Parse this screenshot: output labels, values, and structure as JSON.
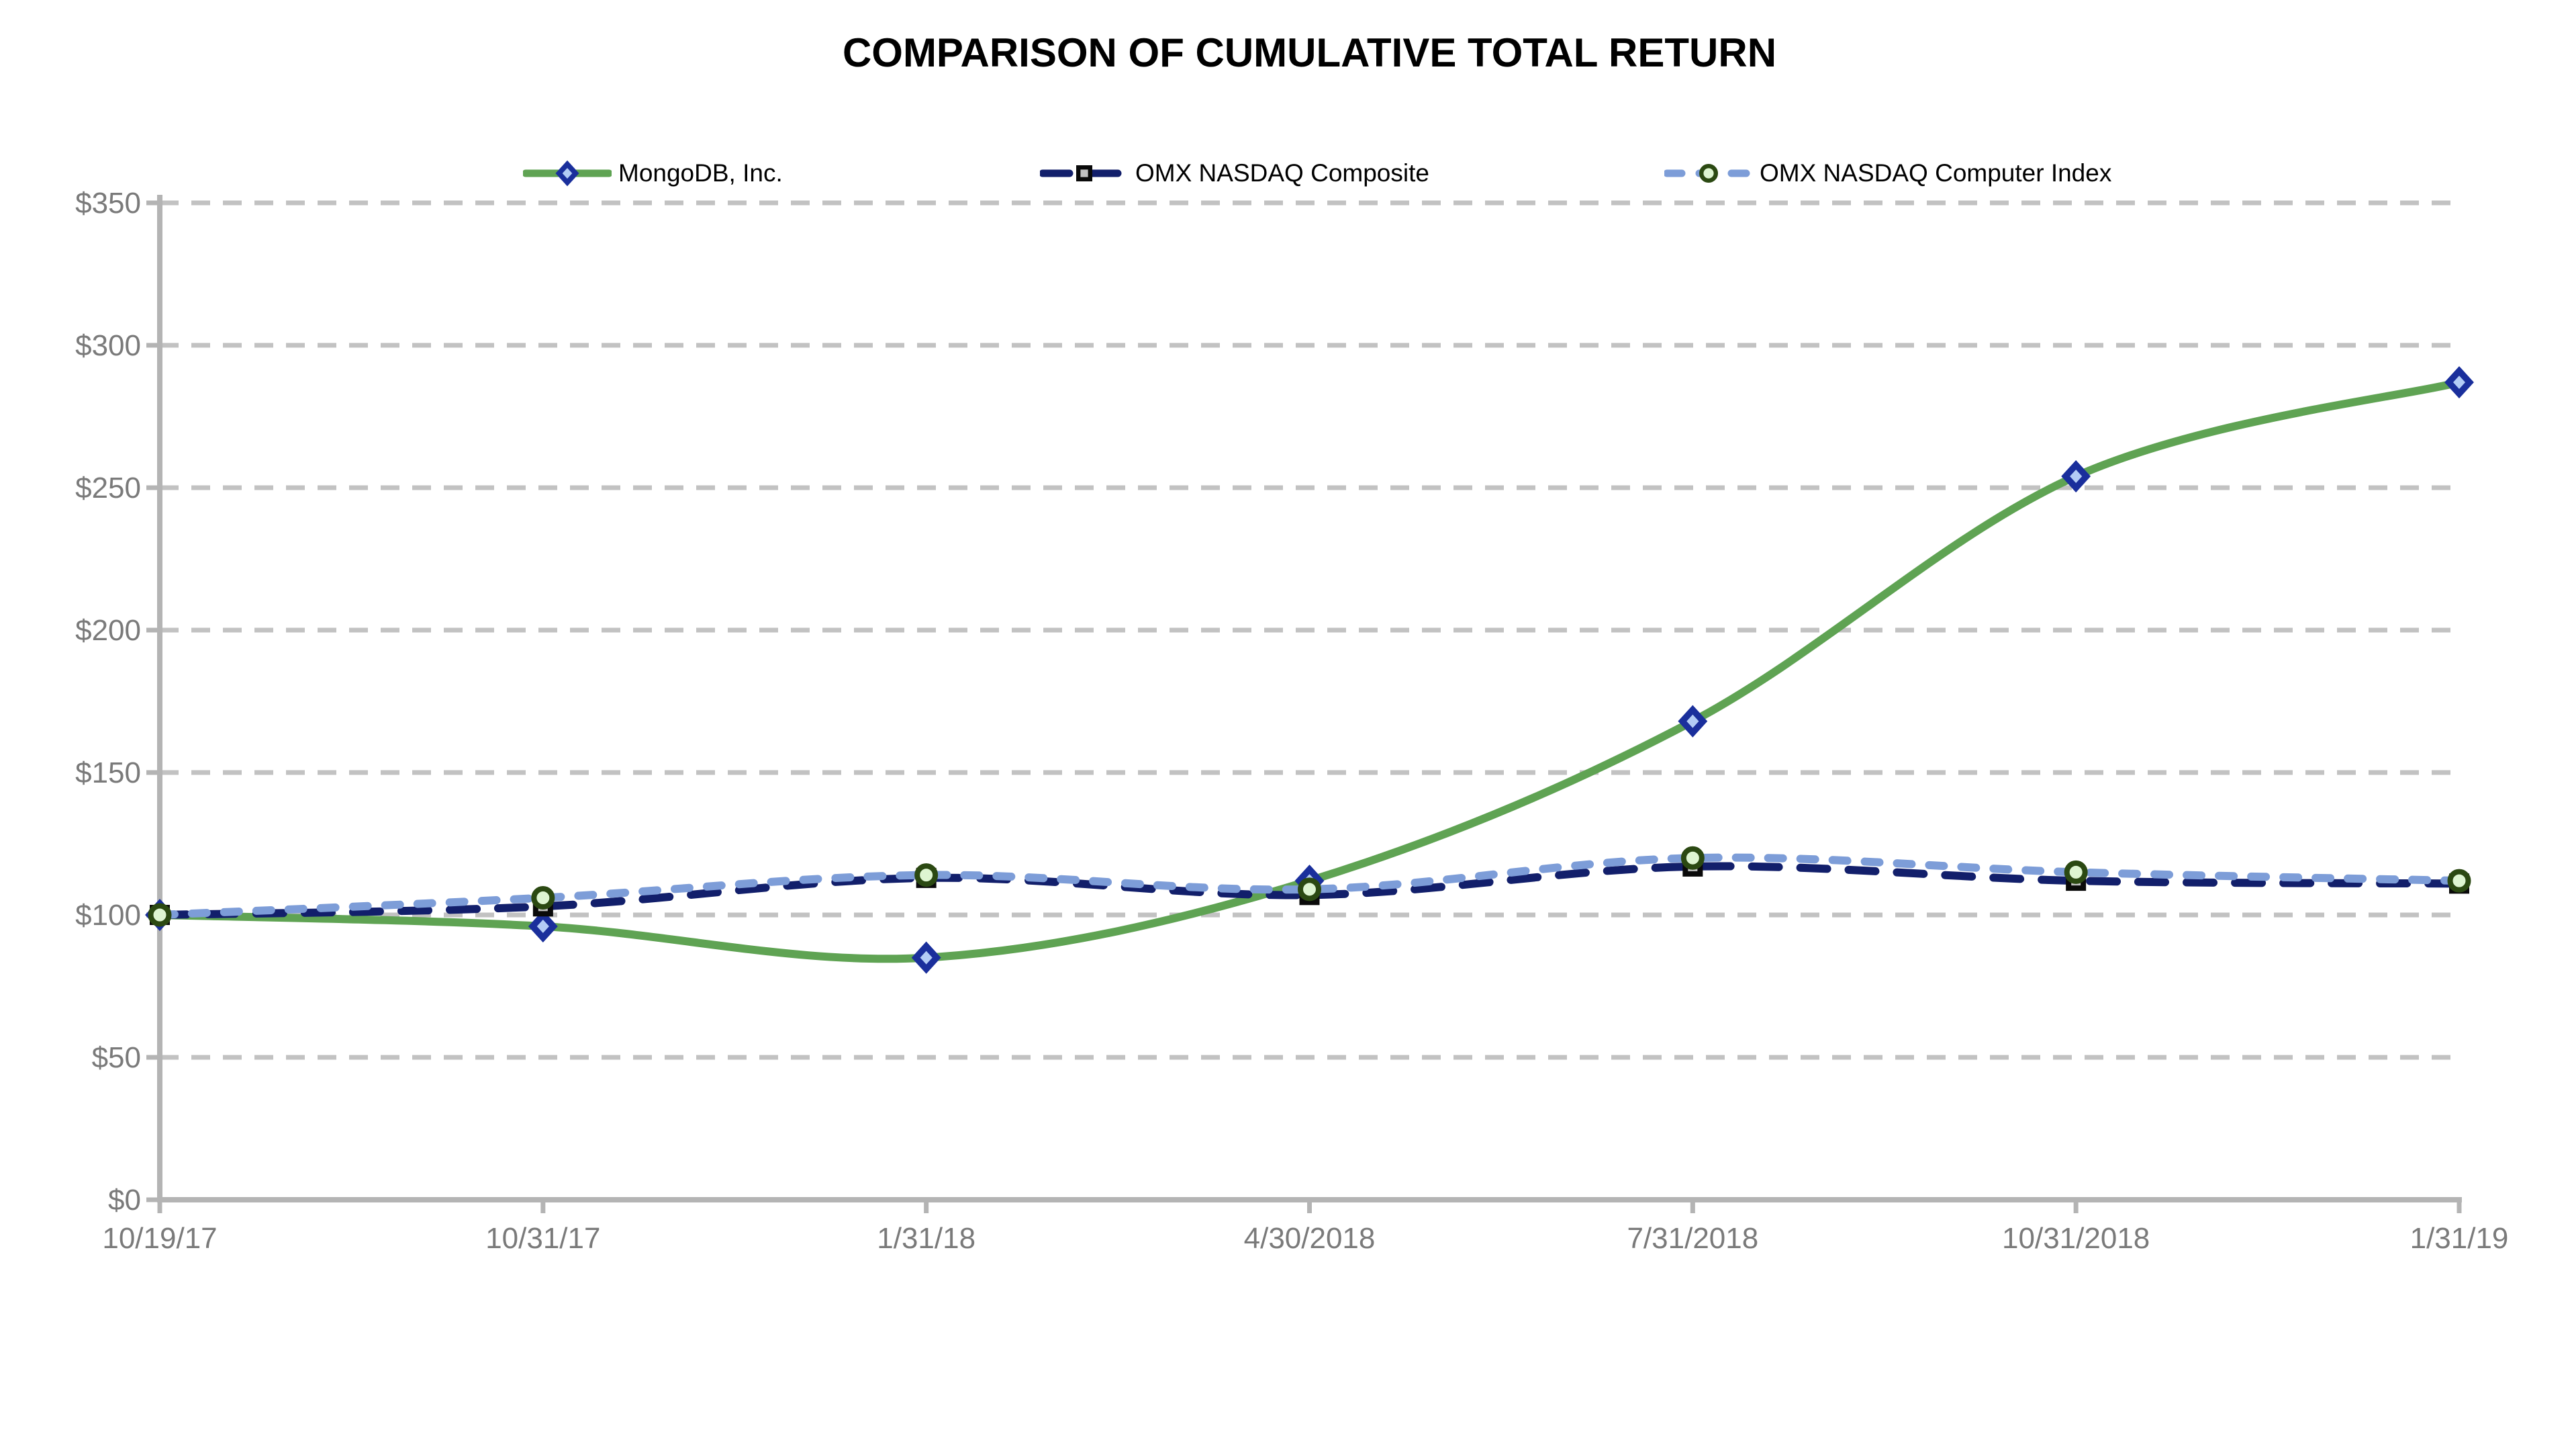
{
  "chart_data": {
    "type": "line",
    "title": "COMPARISON OF CUMULATIVE TOTAL RETURN",
    "x_categories": [
      "10/19/17",
      "10/31/17",
      "1/31/18",
      "4/30/2018",
      "7/31/2018",
      "10/31/2018",
      "1/31/19"
    ],
    "y_tick_labels": [
      "$350",
      "$300",
      "$250",
      "$200",
      "$150",
      "$100",
      "$50",
      "$0"
    ],
    "y_tick_values": [
      350,
      300,
      250,
      200,
      150,
      100,
      50,
      0
    ],
    "ylim": [
      0,
      350
    ],
    "grid": "horizontal-dashed",
    "legend_position": "top",
    "gridline_color": "#c2c2c2",
    "axis_color": "#b4b4b4",
    "tick_label_color": "#7a7a7a",
    "series": [
      {
        "name": "MongoDB, Inc.",
        "values": [
          100,
          96,
          85,
          112,
          168,
          254,
          287
        ],
        "line_color": "#5fa353",
        "line_style": "solid",
        "marker": "diamond",
        "marker_fill": "#b3ccf5",
        "marker_stroke": "#1a2f9c"
      },
      {
        "name": "OMX NASDAQ Composite",
        "values": [
          100,
          103,
          113,
          107,
          117,
          112,
          111
        ],
        "line_color": "#121f6b",
        "line_style": "dash",
        "marker": "square",
        "marker_fill": "#c2c2c2",
        "marker_stroke": "#0a0a0a"
      },
      {
        "name": "OMX NASDAQ Computer Index",
        "values": [
          100,
          106,
          114,
          109,
          120,
          115,
          112
        ],
        "line_color": "#7d9dd8",
        "line_style": "dash-short",
        "marker": "circle",
        "marker_fill": "#def5d1",
        "marker_stroke": "#2b4912"
      }
    ]
  }
}
